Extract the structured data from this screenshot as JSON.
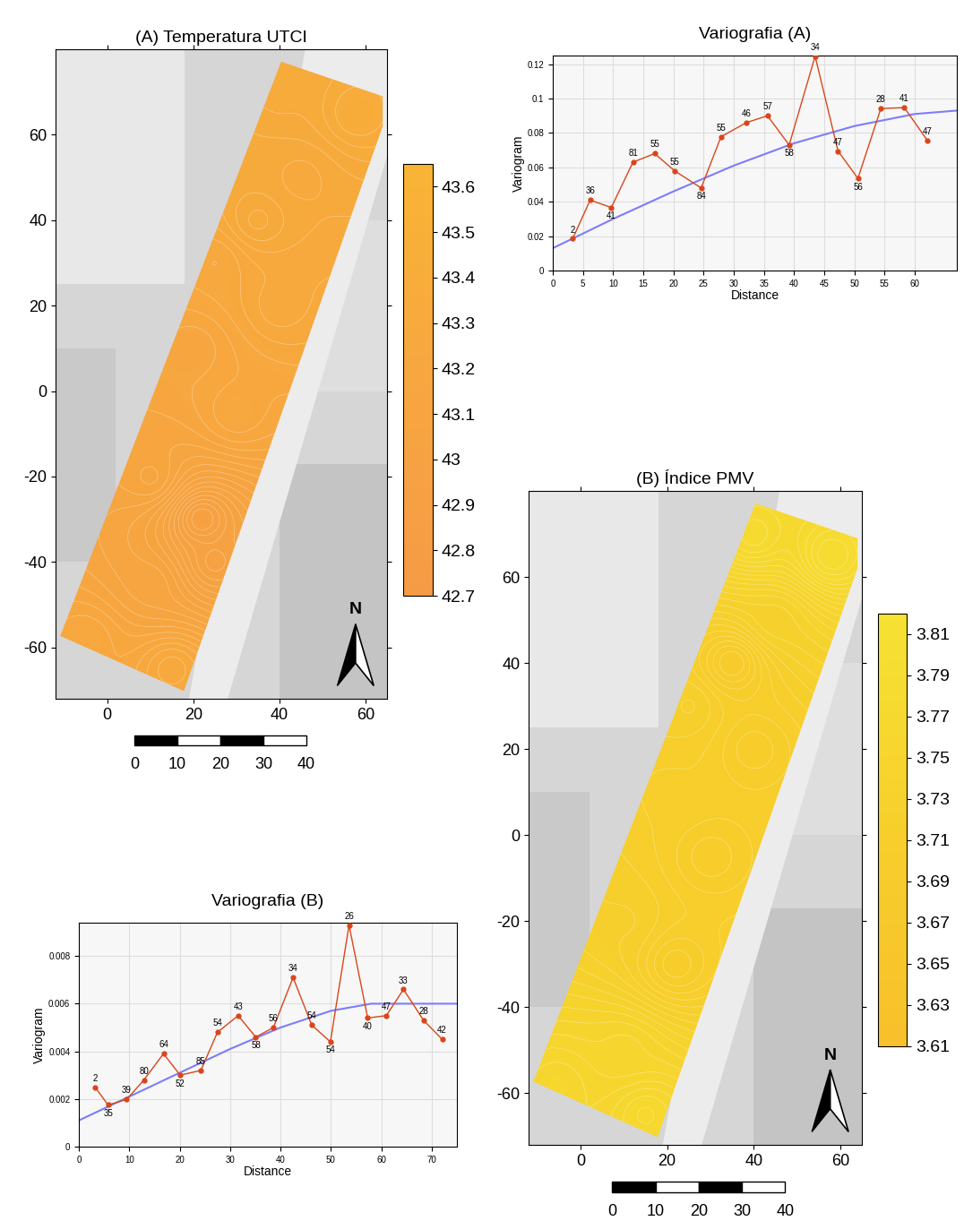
{
  "chart_data": [
    {
      "type": "contour_map",
      "title": "(A) Temperatura UTCI",
      "xlim": [
        -12,
        65
      ],
      "ylim": [
        -72,
        80
      ],
      "xticks": [
        0,
        20,
        40,
        60
      ],
      "yticks": [
        -60,
        -40,
        -20,
        0,
        20,
        40,
        60
      ],
      "area": [
        [
          40.4,
          77.1
        ],
        [
          64,
          69
        ],
        [
          64,
          62
        ],
        [
          17.8,
          -70.2
        ],
        [
          -10.9,
          -57.3
        ]
      ],
      "surface_points": [
        [
          -5,
          -58,
          43.25
        ],
        [
          10,
          -45,
          43.15
        ],
        [
          22,
          -30,
          42.95
        ],
        [
          25,
          -40,
          43.0
        ],
        [
          10,
          -20,
          43.2
        ],
        [
          30,
          -5,
          43.25
        ],
        [
          20,
          10,
          43.2
        ],
        [
          40,
          20,
          43.3
        ],
        [
          25,
          30,
          43.25
        ],
        [
          35,
          40,
          43.35
        ],
        [
          45,
          50,
          43.3
        ],
        [
          40,
          70,
          43.35
        ],
        [
          58,
          65,
          43.4
        ],
        [
          15,
          -65,
          43.3
        ]
      ],
      "colorbar": {
        "range": [
          42.7,
          43.65
        ],
        "ticks": [
          42.7,
          42.8,
          42.9,
          43,
          43.1,
          43.2,
          43.3,
          43.4,
          43.5,
          43.6
        ]
      },
      "scale_bar": [
        0,
        10,
        20,
        30,
        40
      ],
      "north_label": "N"
    },
    {
      "type": "line",
      "title": "Variografia (A)",
      "x_label": "Distance",
      "y_label": "Variogram",
      "xlim": [
        0,
        67
      ],
      "ylim": [
        0,
        0.125
      ],
      "xticks": [
        0,
        5,
        10,
        15,
        20,
        25,
        30,
        35,
        40,
        45,
        50,
        55,
        60
      ],
      "yticks": [
        0,
        0.02,
        0.04,
        0.06,
        0.08,
        0.1,
        0.12
      ],
      "grid": true,
      "series": [
        {
          "type": "line",
          "marker": "o",
          "color": "#d9451a",
          "x": [
            3.3,
            6.2,
            9.7,
            13.3,
            16.9,
            20.2,
            24.6,
            27.9,
            32.1,
            35.6,
            39.2,
            43.5,
            47.3,
            50.6,
            54.4,
            58.3,
            62.1
          ],
          "values": [
            0.0185,
            0.041,
            0.0366,
            0.063,
            0.068,
            0.058,
            0.048,
            0.0778,
            0.086,
            0.09,
            0.073,
            0.1246,
            0.0695,
            0.0536,
            0.0942,
            0.0947,
            0.0757
          ],
          "pairs": [
            2,
            36,
            41,
            81,
            55,
            55,
            84,
            55,
            46,
            57,
            58,
            34,
            47,
            56,
            28,
            41,
            47
          ]
        },
        {
          "type": "line",
          "color": "#7d7dfa",
          "x": [
            0,
            10,
            20,
            30,
            40,
            50,
            60,
            67
          ],
          "values": [
            0.013,
            0.03,
            0.046,
            0.061,
            0.074,
            0.084,
            0.091,
            0.093
          ]
        }
      ]
    },
    {
      "type": "contour_map",
      "title": "(B) Índice PMV",
      "xlim": [
        -12,
        65
      ],
      "ylim": [
        -72,
        80
      ],
      "xticks": [
        0,
        20,
        40,
        60
      ],
      "yticks": [
        -60,
        -40,
        -20,
        0,
        20,
        40,
        60
      ],
      "area": [
        [
          40.4,
          77.1
        ],
        [
          64,
          69
        ],
        [
          64,
          62
        ],
        [
          17.8,
          -70.2
        ],
        [
          -10.9,
          -57.3
        ]
      ],
      "surface_points": [
        [
          -5,
          -58,
          3.76
        ],
        [
          10,
          -50,
          3.75
        ],
        [
          15,
          -65,
          3.77
        ],
        [
          22,
          -30,
          3.7
        ],
        [
          10,
          -20,
          3.72
        ],
        [
          30,
          -5,
          3.7
        ],
        [
          20,
          10,
          3.71
        ],
        [
          40,
          20,
          3.7
        ],
        [
          25,
          30,
          3.72
        ],
        [
          35,
          40,
          3.69
        ],
        [
          45,
          50,
          3.73
        ],
        [
          40,
          70,
          3.78
        ],
        [
          58,
          65,
          3.79
        ]
      ],
      "colorbar": {
        "range": [
          3.61,
          3.82
        ],
        "ticks": [
          3.61,
          3.63,
          3.65,
          3.67,
          3.69,
          3.71,
          3.73,
          3.75,
          3.77,
          3.79,
          3.81
        ]
      },
      "scale_bar": [
        0,
        10,
        20,
        30,
        40
      ],
      "north_label": "N"
    },
    {
      "type": "line",
      "title": "Variografia (B)",
      "x_label": "Distance",
      "y_label": "Variogram",
      "xlim": [
        0,
        75
      ],
      "ylim": [
        0,
        0.0094
      ],
      "xticks": [
        0,
        10,
        20,
        30,
        40,
        50,
        60,
        70
      ],
      "yticks": [
        0,
        0.002,
        0.004,
        0.006,
        0.008
      ],
      "grid": true,
      "series": [
        {
          "type": "line",
          "marker": "o",
          "color": "#d9451a",
          "x": [
            3.2,
            5.8,
            9.5,
            12.9,
            16.8,
            20.1,
            24.2,
            27.5,
            31.6,
            35.1,
            38.6,
            42.5,
            46.2,
            49.9,
            53.6,
            57.3,
            61.0,
            64.4,
            68.4,
            72.1
          ],
          "values": [
            0.0025,
            0.00175,
            0.00198,
            0.0028,
            0.0039,
            0.003,
            0.0032,
            0.0048,
            0.0055,
            0.0046,
            0.005,
            0.0071,
            0.0051,
            0.0044,
            0.0093,
            0.0054,
            0.0055,
            0.0066,
            0.0053,
            0.0045
          ],
          "pairs": [
            2,
            35,
            39,
            80,
            64,
            52,
            85,
            54,
            43,
            58,
            56,
            34,
            54,
            54,
            26,
            40,
            47,
            33,
            28,
            42
          ]
        },
        {
          "type": "line",
          "color": "#7d7dfa",
          "x": [
            0,
            10,
            20,
            30,
            40,
            50,
            58,
            75
          ],
          "values": [
            0.0011,
            0.0021,
            0.0031,
            0.0041,
            0.005,
            0.0057,
            0.006,
            0.006
          ]
        }
      ]
    }
  ]
}
